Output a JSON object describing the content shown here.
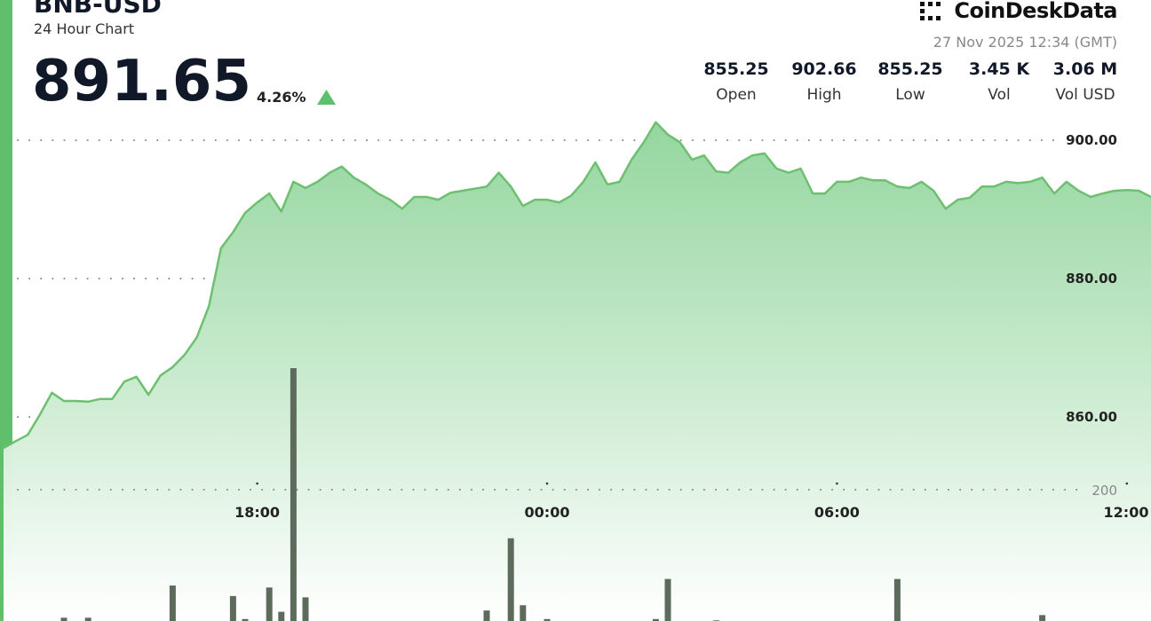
{
  "header": {
    "symbol": "BNB-USD",
    "subtitle": "24 Hour Chart",
    "price": "891.65",
    "change": "4.26%",
    "brand": "CoinDeskData",
    "timestamp": "27 Nov 2025 12:34 (GMT)",
    "stats": [
      {
        "value": "855.25",
        "label": "Open"
      },
      {
        "value": "902.66",
        "label": "High"
      },
      {
        "value": "855.25",
        "label": "Low"
      },
      {
        "value": "3.45 K",
        "label": "Vol"
      },
      {
        "value": "3.06 M",
        "label": "Vol USD"
      }
    ]
  },
  "chart_data": [
    {
      "type": "line",
      "color": "#6cc070",
      "grid": true,
      "x": [
        "12:45",
        "13:00",
        "13:15",
        "13:30",
        "13:45",
        "14:00",
        "14:15",
        "14:30",
        "14:45",
        "15:00",
        "15:15",
        "15:30",
        "15:45",
        "16:00",
        "16:15",
        "16:30",
        "16:45",
        "17:00",
        "17:15",
        "17:30",
        "17:45",
        "18:00",
        "18:15",
        "18:30",
        "18:45",
        "19:00",
        "19:15",
        "19:30",
        "19:45",
        "20:00",
        "20:15",
        "20:30",
        "20:45",
        "21:00",
        "21:15",
        "21:30",
        "21:45",
        "22:00",
        "22:15",
        "22:30",
        "22:45",
        "23:00",
        "23:15",
        "23:30",
        "23:45",
        "00:00",
        "00:15",
        "00:30",
        "00:45",
        "01:00",
        "01:15",
        "01:30",
        "01:45",
        "02:00",
        "02:15",
        "02:30",
        "02:45",
        "03:00",
        "03:15",
        "03:30",
        "03:45",
        "04:00",
        "04:15",
        "04:30",
        "04:45",
        "05:00",
        "05:15",
        "05:30",
        "05:45",
        "06:00",
        "06:15",
        "06:30",
        "06:45",
        "07:00",
        "07:15",
        "07:30",
        "07:45",
        "08:00",
        "08:15",
        "08:30",
        "08:45",
        "09:00",
        "09:15",
        "09:30",
        "09:45",
        "10:00",
        "10:15",
        "10:30",
        "10:45",
        "11:00",
        "11:15",
        "11:30",
        "11:45",
        "12:00",
        "12:15",
        "12:30"
      ],
      "values": [
        855.5,
        856.5,
        857.4,
        860.3,
        863.5,
        862.3,
        862.3,
        862.2,
        862.6,
        862.6,
        865.1,
        865.8,
        863.2,
        866,
        867.2,
        869,
        871.5,
        876,
        884.4,
        886.7,
        889.5,
        891,
        892.3,
        889.7,
        894,
        893.1,
        894,
        895.3,
        896.2,
        894.6,
        893.6,
        892.3,
        891.4,
        890.1,
        891.8,
        891.8,
        891.4,
        892.4,
        892.7,
        893,
        893.3,
        895.3,
        893.3,
        890.5,
        891.4,
        891.4,
        891,
        892,
        894,
        896.8,
        893.6,
        894,
        897.2,
        899.7,
        902.6,
        900.8,
        899.7,
        897.2,
        897.8,
        895.5,
        895.3,
        896.8,
        897.8,
        898.1,
        895.9,
        895.3,
        895.9,
        892.3,
        892.3,
        894,
        894,
        894.6,
        894.2,
        894.2,
        893.3,
        893.1,
        894,
        892.7,
        890.1,
        891.4,
        891.7,
        893.3,
        893.3,
        894,
        893.8,
        894,
        894.6,
        892.3,
        894,
        892.7,
        891.8,
        892.3,
        892.7,
        892.8,
        892.7,
        891.8
      ],
      "ylim": [
        830.5,
        903.6
      ],
      "yticks": [
        {
          "value": 860,
          "label": "860.00"
        },
        {
          "value": 880,
          "label": "880.00"
        },
        {
          "value": 900,
          "label": "900.00"
        }
      ],
      "xticks": [
        "18:00",
        "00:00",
        "06:00",
        "12:00"
      ]
    },
    {
      "type": "bar",
      "color": "#5d6b5d",
      "grid": true,
      "x": [
        "12:45",
        "13:00",
        "13:15",
        "13:30",
        "13:45",
        "14:00",
        "14:15",
        "14:30",
        "14:45",
        "15:00",
        "15:15",
        "15:30",
        "15:45",
        "16:00",
        "16:15",
        "16:30",
        "16:45",
        "17:00",
        "17:15",
        "17:30",
        "17:45",
        "18:00",
        "18:15",
        "18:30",
        "18:45",
        "19:00",
        "19:15",
        "19:30",
        "19:45",
        "20:00",
        "20:15",
        "20:30",
        "20:45",
        "21:00",
        "21:15",
        "21:30",
        "21:45",
        "22:00",
        "22:15",
        "22:30",
        "22:45",
        "23:00",
        "23:15",
        "23:30",
        "23:45",
        "00:00",
        "00:15",
        "00:30",
        "00:45",
        "01:00",
        "01:15",
        "01:30",
        "01:45",
        "02:00",
        "02:15",
        "02:30",
        "02:45",
        "03:00",
        "03:15",
        "03:30",
        "03:45",
        "04:00",
        "04:15",
        "04:30",
        "04:45",
        "05:00",
        "05:15",
        "05:30",
        "05:45",
        "06:00",
        "06:15",
        "06:30",
        "06:45",
        "07:00",
        "07:15",
        "07:30",
        "07:45",
        "08:00",
        "08:15",
        "08:30",
        "08:45",
        "09:00",
        "09:15",
        "09:30",
        "09:45",
        "10:00",
        "10:15",
        "10:30",
        "10:45",
        "11:00",
        "11:15",
        "11:30",
        "11:45",
        "12:00",
        "12:15",
        "12:30"
      ],
      "values": [
        0,
        0,
        0,
        0,
        0,
        5,
        0,
        5,
        0,
        0,
        0,
        0,
        0,
        0,
        54,
        0,
        0,
        0,
        0,
        38,
        3,
        0,
        51,
        14,
        385,
        36,
        0,
        0,
        0,
        0,
        0,
        0,
        0,
        0,
        0,
        0,
        0,
        0,
        0,
        0,
        16,
        0,
        126,
        24,
        0,
        3,
        0,
        0,
        0,
        0,
        0,
        0,
        0,
        0,
        3,
        64,
        0,
        0,
        0,
        1,
        0,
        0,
        0,
        0,
        0,
        0,
        0,
        0,
        0,
        0,
        0,
        0,
        0,
        0,
        64,
        0,
        0,
        0,
        0,
        0,
        0,
        0,
        0,
        0,
        0,
        0,
        9,
        0,
        0,
        0,
        0,
        0,
        0,
        0,
        0,
        0
      ],
      "ylim": [
        0,
        770
      ],
      "yticks": [
        200
      ]
    }
  ]
}
